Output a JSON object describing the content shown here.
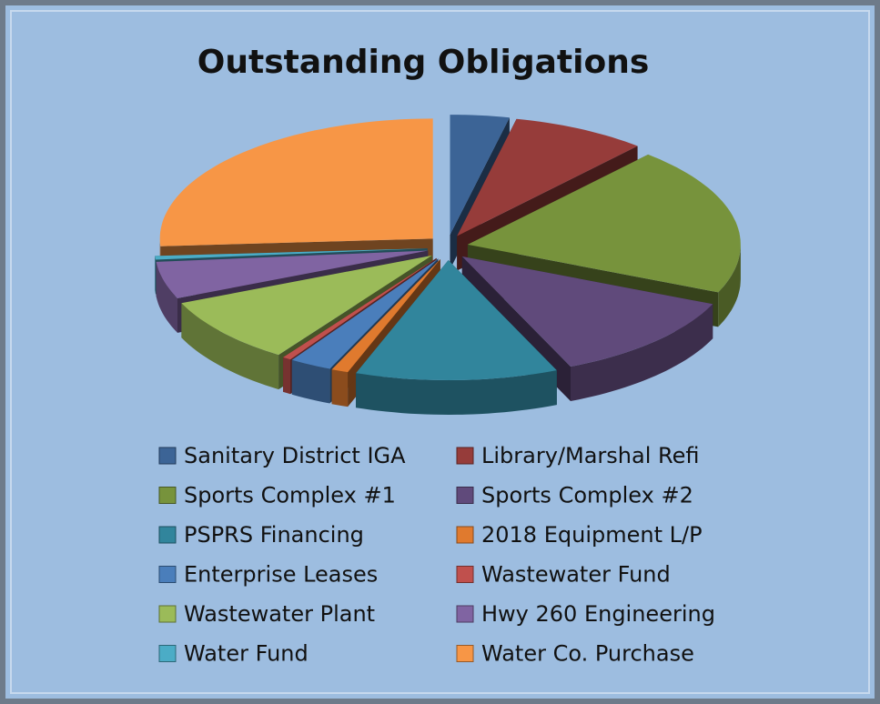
{
  "chart_data": {
    "type": "pie",
    "title": "Outstanding Obligations",
    "categories": [
      "Sanitary District IGA",
      "Library/Marshal Refi",
      "Sports Complex #1",
      "Sports Complex #2",
      "PSPRS Financing",
      "2018 Equipment L/P",
      "Enterprise Leases",
      "Wastewater Fund",
      "Wastewater Plant",
      "Hwy 260 Engineering",
      "Water Fund",
      "Water Co. Purchase"
    ],
    "values": [
      3.5,
      8,
      20,
      12,
      12,
      1,
      2.5,
      0.5,
      9,
      5,
      0.5,
      26
    ],
    "colors": [
      "#3c6496",
      "#963c3a",
      "#77933c",
      "#604a7b",
      "#31859c",
      "#e07a2e",
      "#4a7ebb",
      "#c0504d",
      "#9bbb59",
      "#8064a2",
      "#4bacc6",
      "#f79646"
    ],
    "legend": "bottom"
  }
}
